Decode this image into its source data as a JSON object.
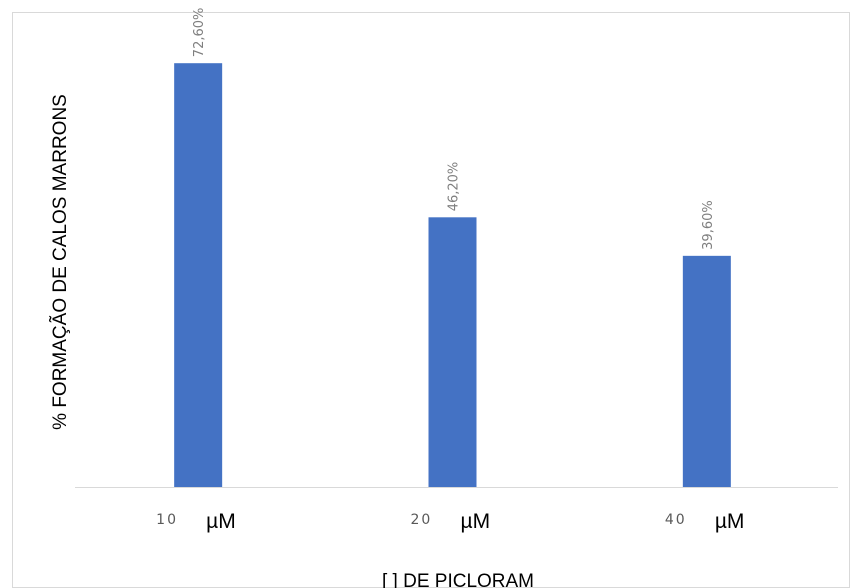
{
  "chart_data": {
    "type": "bar",
    "categories": [
      "10",
      "20",
      "40"
    ],
    "category_unit": "µM",
    "values": [
      72.6,
      46.2,
      39.6
    ],
    "data_labels": [
      "72,60%",
      "46,20%",
      "39,60%"
    ],
    "title": "",
    "xlabel": "[ ] DE PICLORAM",
    "ylabel": "% FORMAÇÃO DE CALOS MARRONS",
    "ylim": [
      0,
      80
    ],
    "grid": false,
    "bar_color": "#4472c4"
  }
}
